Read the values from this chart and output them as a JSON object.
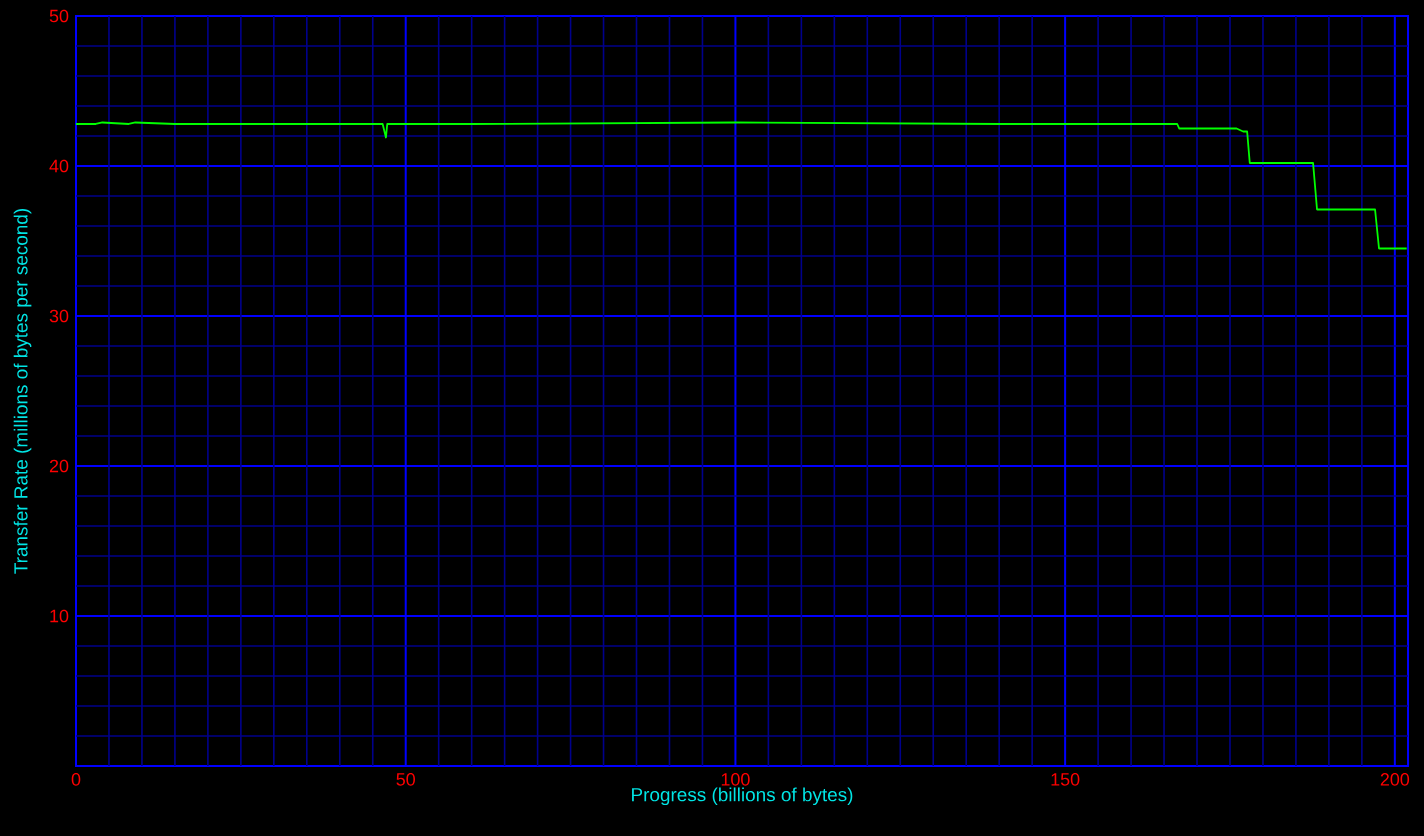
{
  "chart_data": {
    "type": "line",
    "xlabel": "Progress (billions of bytes)",
    "ylabel": "Transfer Rate (millions of bytes per second)",
    "x": [
      0,
      3,
      4,
      8,
      9,
      15,
      16,
      46.5,
      47,
      47.2,
      47.5,
      60,
      100,
      140,
      167,
      167.3,
      176,
      177,
      177.6,
      178,
      187.6,
      188.2,
      189,
      197,
      197.6,
      198,
      201.8
    ],
    "series": [
      {
        "color": "#00ff00",
        "values": [
          42.8,
          42.8,
          42.9,
          42.8,
          42.9,
          42.8,
          42.8,
          42.8,
          41.9,
          42.8,
          42.8,
          42.8,
          42.9,
          42.8,
          42.8,
          42.5,
          42.5,
          42.3,
          42.3,
          40.2,
          40.2,
          37.1,
          37.1,
          37.1,
          34.5,
          34.5,
          34.5
        ]
      }
    ],
    "xlim": [
      0,
      202
    ],
    "ylim": [
      0,
      50
    ],
    "xticks": [
      0,
      {
        "value": 5,
        "label": null
      },
      {
        "value": 10,
        "label": null
      },
      {
        "value": 15,
        "label": null
      },
      {
        "value": 20,
        "label": null
      },
      {
        "value": 25,
        "label": null
      },
      {
        "value": 30,
        "label": null
      },
      {
        "value": 35,
        "label": null
      },
      {
        "value": 40,
        "label": null
      },
      {
        "value": 45,
        "label": null
      },
      50,
      {
        "value": 55,
        "label": null
      },
      {
        "value": 60,
        "label": null
      },
      {
        "value": 65,
        "label": null
      },
      {
        "value": 70,
        "label": null
      },
      {
        "value": 75,
        "label": null
      },
      {
        "value": 80,
        "label": null
      },
      {
        "value": 85,
        "label": null
      },
      {
        "value": 90,
        "label": null
      },
      {
        "value": 95,
        "label": null
      },
      100,
      {
        "value": 105,
        "label": null
      },
      {
        "value": 110,
        "label": null
      },
      {
        "value": 115,
        "label": null
      },
      {
        "value": 120,
        "label": null
      },
      {
        "value": 125,
        "label": null
      },
      {
        "value": 130,
        "label": null
      },
      {
        "value": 135,
        "label": null
      },
      {
        "value": 140,
        "label": null
      },
      {
        "value": 145,
        "label": null
      },
      150,
      {
        "value": 155,
        "label": null
      },
      {
        "value": 160,
        "label": null
      },
      {
        "value": 165,
        "label": null
      },
      {
        "value": 170,
        "label": null
      },
      {
        "value": 175,
        "label": null
      },
      {
        "value": 180,
        "label": null
      },
      {
        "value": 185,
        "label": null
      },
      {
        "value": 190,
        "label": null
      },
      {
        "value": 195,
        "label": null
      },
      200
    ],
    "yticks": [
      {
        "value": 2,
        "label": null
      },
      {
        "value": 4,
        "label": null
      },
      {
        "value": 6,
        "label": null
      },
      {
        "value": 8,
        "label": null
      },
      10,
      {
        "value": 12,
        "label": null
      },
      {
        "value": 14,
        "label": null
      },
      {
        "value": 16,
        "label": null
      },
      {
        "value": 18,
        "label": null
      },
      20,
      {
        "value": 22,
        "label": null
      },
      {
        "value": 24,
        "label": null
      },
      {
        "value": 26,
        "label": null
      },
      {
        "value": 28,
        "label": null
      },
      30,
      {
        "value": 32,
        "label": null
      },
      {
        "value": 34,
        "label": null
      },
      {
        "value": 36,
        "label": null
      },
      {
        "value": 38,
        "label": null
      },
      40,
      {
        "value": 42,
        "label": null
      },
      {
        "value": 44,
        "label": null
      },
      {
        "value": 46,
        "label": null
      },
      {
        "value": 48,
        "label": null
      },
      50
    ],
    "grid": true,
    "marker": "none",
    "line_style": "solid"
  }
}
